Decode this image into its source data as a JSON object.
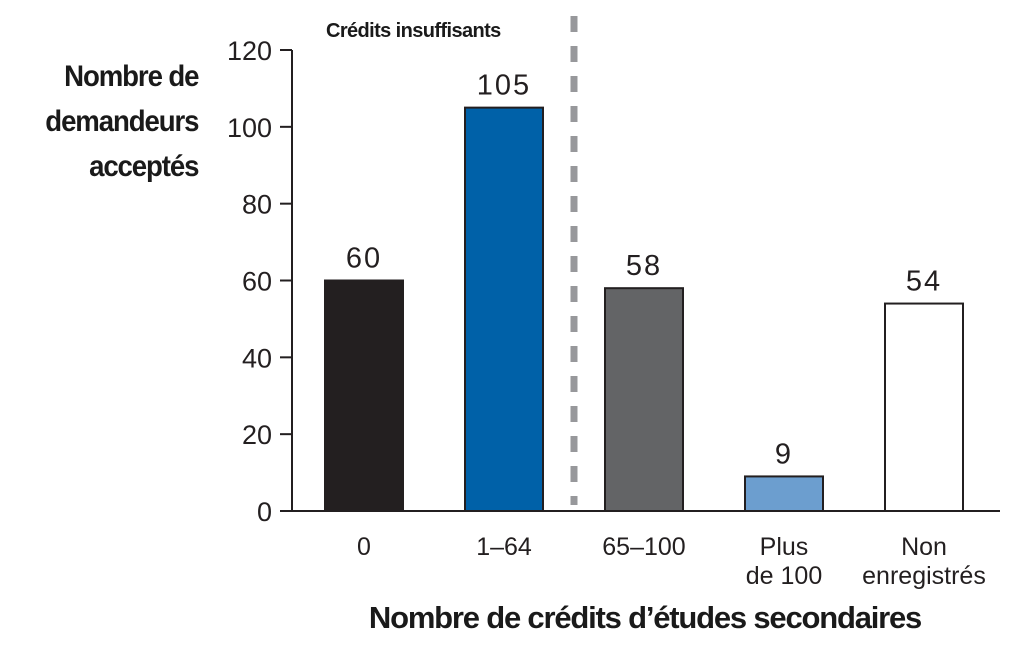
{
  "chart_data": {
    "type": "bar",
    "title": "",
    "ylabel": "Nombre de\ndemandeurs\nacceptés",
    "xlabel": "Nombre de crédits d’études secondaires",
    "categories": [
      "0",
      "1–64",
      "65–100",
      "Plus\nde 100",
      "Non\nenregistrés"
    ],
    "values": [
      60,
      105,
      58,
      9,
      54
    ],
    "data_labels": [
      "60",
      "105",
      "58",
      "9",
      "54"
    ],
    "bar_colors": [
      "#231f20",
      "#0061a8",
      "#636466",
      "#6c9ecf",
      "#ffffff"
    ],
    "ylim": [
      0,
      120
    ],
    "yticks": [
      0,
      20,
      40,
      60,
      80,
      100,
      120
    ],
    "grid": false,
    "annotation": {
      "text": "Crédits insuffisants",
      "divider": "dashed vertical line between “1–64” and “65–100”"
    }
  }
}
